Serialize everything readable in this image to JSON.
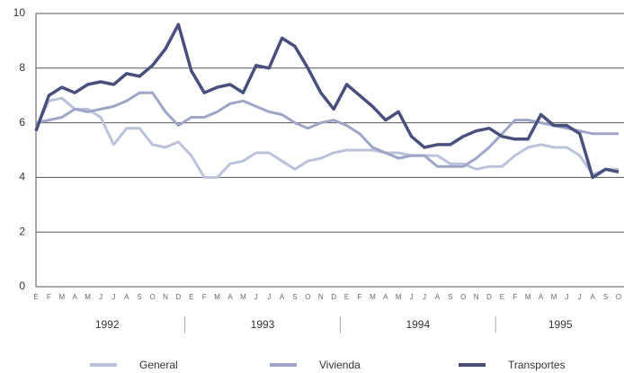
{
  "chart_data": {
    "type": "line",
    "categories": [
      "E",
      "F",
      "M",
      "A",
      "M",
      "J",
      "J",
      "A",
      "S",
      "O",
      "N",
      "D",
      "E",
      "F",
      "M",
      "A",
      "M",
      "J",
      "J",
      "A",
      "S",
      "O",
      "N",
      "D",
      "E",
      "F",
      "M",
      "A",
      "M",
      "J",
      "J",
      "A",
      "S",
      "O",
      "N",
      "D",
      "E",
      "F",
      "M",
      "A",
      "M",
      "J",
      "J",
      "A",
      "S",
      "O"
    ],
    "year_labels": [
      "1992",
      "1993",
      "1994",
      "1995"
    ],
    "ylim": [
      0,
      10
    ],
    "yticks": [
      0,
      2,
      4,
      6,
      8,
      10
    ],
    "grid": true,
    "legend": "bottom",
    "series": [
      {
        "name": "General",
        "color": "#bcc2da",
        "values": [
          5.8,
          6.8,
          6.9,
          6.5,
          6.5,
          6.2,
          5.2,
          5.8,
          5.8,
          5.2,
          5.1,
          5.3,
          4.8,
          4.0,
          4.0,
          4.5,
          4.6,
          4.9,
          4.9,
          4.6,
          4.3,
          4.6,
          4.7,
          4.9,
          5.0,
          5.0,
          5.0,
          4.9,
          4.9,
          4.8,
          4.8,
          4.8,
          4.5,
          4.5,
          4.3,
          4.4,
          4.4,
          4.8,
          5.1,
          5.2,
          5.1,
          5.1,
          4.8,
          4.1,
          4.3,
          4.3
        ]
      },
      {
        "name": "Vivienda",
        "color": "#9ea5c6",
        "values": [
          6.0,
          6.1,
          6.2,
          6.5,
          6.4,
          6.5,
          6.6,
          6.8,
          7.1,
          7.1,
          6.4,
          5.9,
          6.2,
          6.2,
          6.4,
          6.7,
          6.8,
          6.6,
          6.4,
          6.3,
          6.0,
          5.8,
          6.0,
          6.1,
          5.9,
          5.6,
          5.1,
          4.9,
          4.7,
          4.8,
          4.8,
          4.4,
          4.4,
          4.4,
          4.7,
          5.1,
          5.6,
          6.1,
          6.1,
          6.0,
          5.9,
          5.8,
          5.7,
          5.6,
          5.6,
          5.6
        ]
      },
      {
        "name": "Transportes",
        "color": "#4b4f7c",
        "values": [
          5.7,
          7.0,
          7.3,
          7.1,
          7.4,
          7.5,
          7.4,
          7.8,
          7.7,
          8.1,
          8.7,
          9.6,
          7.9,
          7.1,
          7.3,
          7.4,
          7.1,
          8.1,
          8.0,
          9.1,
          8.8,
          8.0,
          7.1,
          6.5,
          7.4,
          7.0,
          6.6,
          6.1,
          6.4,
          5.5,
          5.1,
          5.2,
          5.2,
          5.5,
          5.7,
          5.8,
          5.5,
          5.4,
          5.4,
          6.3,
          5.9,
          5.9,
          5.6,
          4.0,
          4.3,
          4.2
        ]
      }
    ]
  }
}
